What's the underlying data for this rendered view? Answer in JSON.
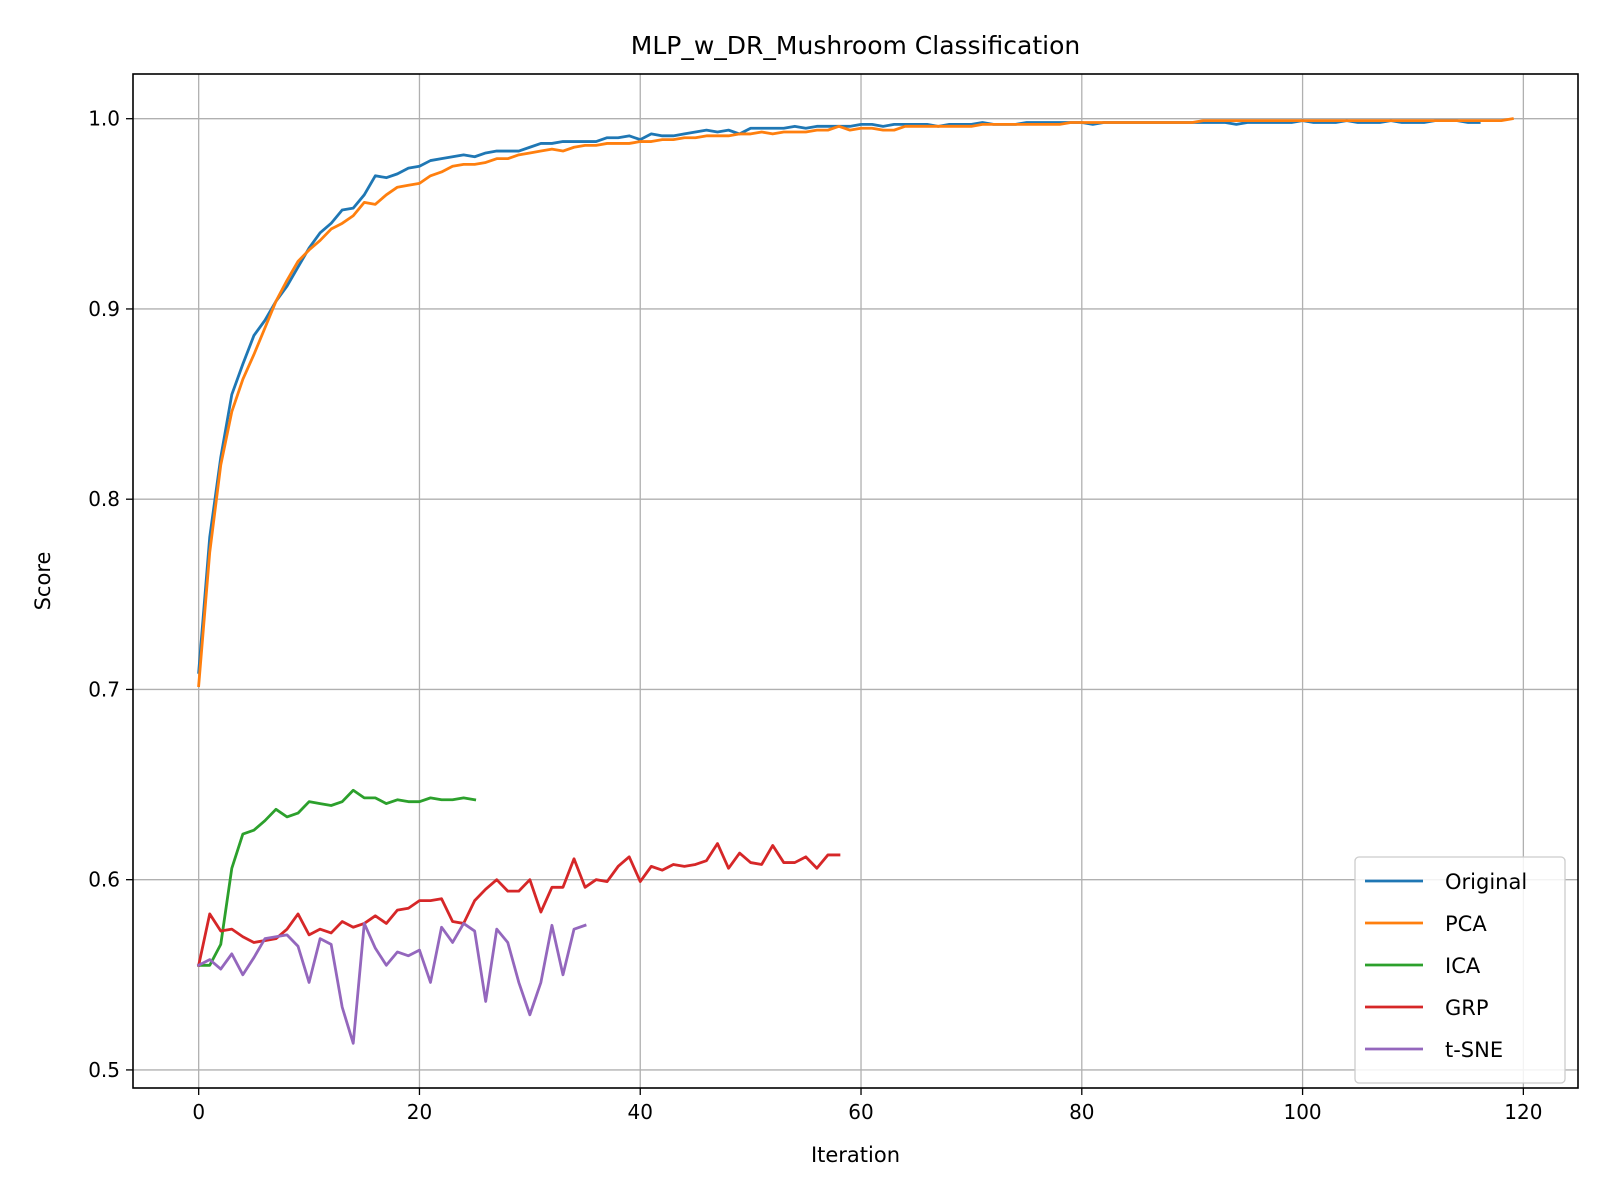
{
  "chart_data": {
    "type": "line",
    "title": "MLP_w_DR_Mushroom Classification",
    "xlabel": "Iteration",
    "ylabel": "Score",
    "xlim": [
      -5.95,
      124.95
    ],
    "ylim": [
      0.4905,
      1.0235
    ],
    "x_ticks": [
      0,
      20,
      40,
      60,
      80,
      100,
      120
    ],
    "y_ticks": [
      0.5,
      0.6,
      0.7,
      0.8,
      0.9,
      1.0
    ],
    "x_tick_labels": [
      "0",
      "20",
      "40",
      "60",
      "80",
      "100",
      "120"
    ],
    "y_tick_labels": [
      "0.5",
      "0.6",
      "0.7",
      "0.8",
      "0.9",
      "1.0"
    ],
    "grid": true,
    "legend_position": "lower-right",
    "series": [
      {
        "name": "Original",
        "color": "#1f77b4",
        "values": [
          0.709,
          0.78,
          0.822,
          0.855,
          0.871,
          0.886,
          0.894,
          0.904,
          0.912,
          0.922,
          0.932,
          0.94,
          0.945,
          0.952,
          0.953,
          0.96,
          0.97,
          0.969,
          0.971,
          0.974,
          0.975,
          0.978,
          0.979,
          0.98,
          0.981,
          0.98,
          0.982,
          0.983,
          0.983,
          0.983,
          0.985,
          0.987,
          0.987,
          0.988,
          0.988,
          0.988,
          0.988,
          0.99,
          0.99,
          0.991,
          0.989,
          0.992,
          0.991,
          0.991,
          0.992,
          0.993,
          0.994,
          0.993,
          0.994,
          0.992,
          0.995,
          0.995,
          0.995,
          0.995,
          0.996,
          0.995,
          0.996,
          0.996,
          0.996,
          0.996,
          0.997,
          0.997,
          0.996,
          0.997,
          0.997,
          0.997,
          0.997,
          0.996,
          0.997,
          0.997,
          0.997,
          0.998,
          0.997,
          0.997,
          0.997,
          0.998,
          0.998,
          0.998,
          0.998,
          0.998,
          0.998,
          0.997,
          0.998,
          0.998,
          0.998,
          0.998,
          0.998,
          0.998,
          0.998,
          0.998,
          0.998,
          0.998,
          0.998,
          0.998,
          0.997,
          0.998,
          0.998,
          0.998,
          0.998,
          0.998,
          0.999,
          0.998,
          0.998,
          0.998,
          0.999,
          0.998,
          0.998,
          0.998,
          0.999,
          0.998,
          0.998,
          0.998,
          0.999,
          0.999,
          0.999,
          0.998,
          0.998
        ]
      },
      {
        "name": "PCA",
        "color": "#ff7f0e",
        "values": [
          0.702,
          0.772,
          0.818,
          0.846,
          0.863,
          0.876,
          0.89,
          0.904,
          0.915,
          0.925,
          0.931,
          0.936,
          0.942,
          0.945,
          0.949,
          0.956,
          0.955,
          0.96,
          0.964,
          0.965,
          0.966,
          0.97,
          0.972,
          0.975,
          0.976,
          0.976,
          0.977,
          0.979,
          0.979,
          0.981,
          0.982,
          0.983,
          0.984,
          0.983,
          0.985,
          0.986,
          0.986,
          0.987,
          0.987,
          0.987,
          0.988,
          0.988,
          0.989,
          0.989,
          0.99,
          0.99,
          0.991,
          0.991,
          0.991,
          0.992,
          0.992,
          0.993,
          0.992,
          0.993,
          0.993,
          0.993,
          0.994,
          0.994,
          0.996,
          0.994,
          0.995,
          0.995,
          0.994,
          0.994,
          0.996,
          0.996,
          0.996,
          0.996,
          0.996,
          0.996,
          0.996,
          0.997,
          0.997,
          0.997,
          0.997,
          0.997,
          0.997,
          0.997,
          0.997,
          0.998,
          0.998,
          0.998,
          0.998,
          0.998,
          0.998,
          0.998,
          0.998,
          0.998,
          0.998,
          0.998,
          0.998,
          0.999,
          0.999,
          0.999,
          0.999,
          0.999,
          0.999,
          0.999,
          0.999,
          0.999,
          0.999,
          0.999,
          0.999,
          0.999,
          0.999,
          0.999,
          0.999,
          0.999,
          0.999,
          0.999,
          0.999,
          0.999,
          0.999,
          0.999,
          0.999,
          0.999,
          0.999,
          0.999,
          0.999,
          1.0
        ]
      },
      {
        "name": "ICA",
        "color": "#2ca02c",
        "values": [
          0.555,
          0.555,
          0.566,
          0.606,
          0.624,
          0.626,
          0.631,
          0.637,
          0.633,
          0.635,
          0.641,
          0.64,
          0.639,
          0.641,
          0.647,
          0.643,
          0.643,
          0.64,
          0.642,
          0.641,
          0.641,
          0.643,
          0.642,
          0.642,
          0.643,
          0.642
        ]
      },
      {
        "name": "GRP",
        "color": "#d62728",
        "values": [
          0.555,
          0.582,
          0.573,
          0.574,
          0.57,
          0.567,
          0.568,
          0.569,
          0.574,
          0.582,
          0.571,
          0.574,
          0.572,
          0.578,
          0.575,
          0.577,
          0.581,
          0.577,
          0.584,
          0.585,
          0.589,
          0.589,
          0.59,
          0.578,
          0.577,
          0.589,
          0.595,
          0.6,
          0.594,
          0.594,
          0.6,
          0.583,
          0.596,
          0.596,
          0.611,
          0.596,
          0.6,
          0.599,
          0.607,
          0.612,
          0.599,
          0.607,
          0.605,
          0.608,
          0.607,
          0.608,
          0.61,
          0.619,
          0.606,
          0.614,
          0.609,
          0.608,
          0.618,
          0.609,
          0.609,
          0.612,
          0.606,
          0.613,
          0.613
        ]
      },
      {
        "name": "t-SNE",
        "color": "#9467bd",
        "values": [
          0.555,
          0.558,
          0.553,
          0.561,
          0.55,
          0.559,
          0.569,
          0.57,
          0.571,
          0.565,
          0.546,
          0.569,
          0.566,
          0.533,
          0.514,
          0.577,
          0.564,
          0.555,
          0.562,
          0.56,
          0.563,
          0.546,
          0.575,
          0.567,
          0.577,
          0.573,
          0.536,
          0.574,
          0.567,
          0.546,
          0.529,
          0.546,
          0.576,
          0.55,
          0.574,
          0.576
        ]
      }
    ]
  }
}
